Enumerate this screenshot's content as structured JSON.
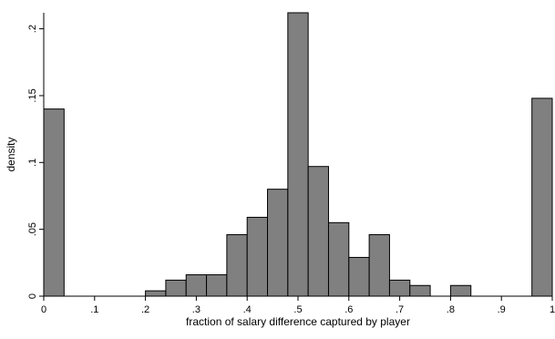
{
  "chart_data": {
    "type": "bar",
    "title": "",
    "xlabel": "fraction of salary difference captured by player",
    "ylabel": "density",
    "xlim": [
      0,
      1
    ],
    "ylim": [
      0,
      0.212
    ],
    "xticks": [
      0,
      0.1,
      0.2,
      0.3,
      0.4,
      0.5,
      0.6,
      0.7,
      0.8,
      0.9,
      1
    ],
    "xtick_labels": [
      "0",
      ".1",
      ".2",
      ".3",
      ".4",
      ".5",
      ".6",
      ".7",
      ".8",
      ".9",
      "1"
    ],
    "yticks": [
      0,
      0.05,
      0.1,
      0.15,
      0.2
    ],
    "ytick_labels": [
      "0",
      ".05",
      ".1",
      ".15",
      ".2"
    ],
    "grid": false,
    "bins": [
      {
        "x0": 0.0,
        "x1": 0.04,
        "value": 0.14
      },
      {
        "x0": 0.2,
        "x1": 0.24,
        "value": 0.004
      },
      {
        "x0": 0.24,
        "x1": 0.28,
        "value": 0.012
      },
      {
        "x0": 0.28,
        "x1": 0.32,
        "value": 0.016
      },
      {
        "x0": 0.32,
        "x1": 0.36,
        "value": 0.016
      },
      {
        "x0": 0.36,
        "x1": 0.4,
        "value": 0.046
      },
      {
        "x0": 0.4,
        "x1": 0.44,
        "value": 0.059
      },
      {
        "x0": 0.44,
        "x1": 0.48,
        "value": 0.08
      },
      {
        "x0": 0.48,
        "x1": 0.52,
        "value": 0.212
      },
      {
        "x0": 0.52,
        "x1": 0.56,
        "value": 0.097
      },
      {
        "x0": 0.56,
        "x1": 0.6,
        "value": 0.055
      },
      {
        "x0": 0.6,
        "x1": 0.64,
        "value": 0.029
      },
      {
        "x0": 0.64,
        "x1": 0.68,
        "value": 0.046
      },
      {
        "x0": 0.68,
        "x1": 0.72,
        "value": 0.012
      },
      {
        "x0": 0.72,
        "x1": 0.76,
        "value": 0.008
      },
      {
        "x0": 0.8,
        "x1": 0.84,
        "value": 0.008
      },
      {
        "x0": 0.96,
        "x1": 1.0,
        "value": 0.148
      }
    ],
    "colors": {
      "bar_fill": "#808080",
      "bar_stroke": "#000000"
    }
  }
}
